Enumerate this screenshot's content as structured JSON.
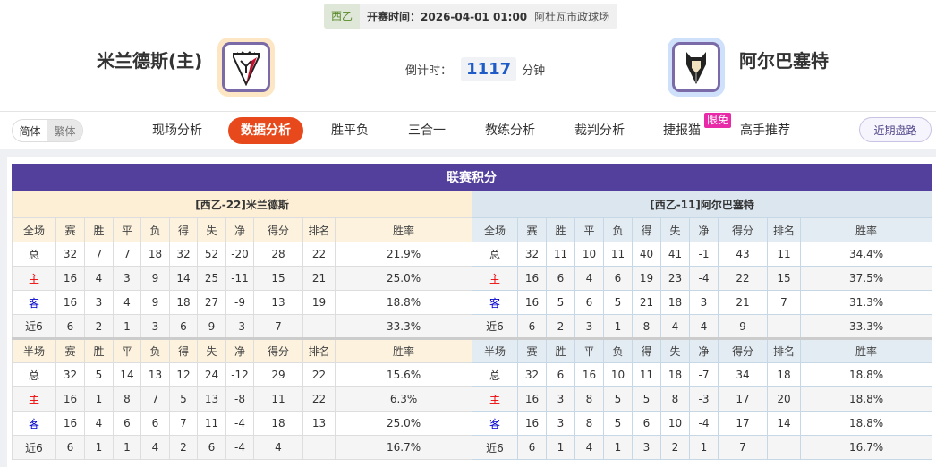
{
  "match": {
    "league": "西乙",
    "kickoff": "开赛时间：2026-04-01 01:00",
    "venue": "阿杜瓦市政球场",
    "home_team": "米兰德斯(主)",
    "away_team": "阿尔巴塞特",
    "countdown_label": "倒计时：",
    "countdown_value": "1117",
    "countdown_unit": "分钟"
  },
  "nav": {
    "lang_simplified": "简体",
    "lang_traditional": "繁体",
    "items": [
      "现场分析",
      "数据分析",
      "胜平负",
      "三合一",
      "教练分析",
      "裁判分析",
      "捷报猫",
      "高手推荐"
    ],
    "active": "数据分析",
    "badge": "限免",
    "recent": "近期盘路"
  },
  "colors": {
    "accent": "#e8491c",
    "header": "#533f9c"
  },
  "standings": {
    "title": "联赛积分",
    "columns": [
      "赛",
      "胜",
      "平",
      "负",
      "得",
      "失",
      "净",
      "得分",
      "排名",
      "胜率"
    ],
    "tables": [
      {
        "title": "[西乙-22]米兰德斯",
        "sections": [
          {
            "label": "全场",
            "rows": [
              [
                "总",
                "32",
                "7",
                "7",
                "18",
                "32",
                "52",
                "-20",
                "28",
                "22",
                "21.9%"
              ],
              [
                "主",
                "16",
                "4",
                "3",
                "9",
                "14",
                "25",
                "-11",
                "15",
                "21",
                "25.0%"
              ],
              [
                "客",
                "16",
                "3",
                "4",
                "9",
                "18",
                "27",
                "-9",
                "13",
                "19",
                "18.8%"
              ],
              [
                "近6",
                "6",
                "2",
                "1",
                "3",
                "6",
                "9",
                "-3",
                "7",
                "",
                "33.3%"
              ]
            ]
          },
          {
            "label": "半场",
            "rows": [
              [
                "总",
                "32",
                "5",
                "14",
                "13",
                "12",
                "24",
                "-12",
                "29",
                "22",
                "15.6%"
              ],
              [
                "主",
                "16",
                "1",
                "8",
                "7",
                "5",
                "13",
                "-8",
                "11",
                "22",
                "6.3%"
              ],
              [
                "客",
                "16",
                "4",
                "6",
                "6",
                "7",
                "11",
                "-4",
                "18",
                "13",
                "25.0%"
              ],
              [
                "近6",
                "6",
                "1",
                "1",
                "4",
                "2",
                "6",
                "-4",
                "4",
                "",
                "16.7%"
              ]
            ]
          }
        ]
      },
      {
        "title": "[西乙-11]阿尔巴塞特",
        "sections": [
          {
            "label": "全场",
            "rows": [
              [
                "总",
                "32",
                "11",
                "10",
                "11",
                "40",
                "41",
                "-1",
                "43",
                "11",
                "34.4%"
              ],
              [
                "主",
                "16",
                "6",
                "4",
                "6",
                "19",
                "23",
                "-4",
                "22",
                "15",
                "37.5%"
              ],
              [
                "客",
                "16",
                "5",
                "6",
                "5",
                "21",
                "18",
                "3",
                "21",
                "7",
                "31.3%"
              ],
              [
                "近6",
                "6",
                "2",
                "3",
                "1",
                "8",
                "4",
                "4",
                "9",
                "",
                "33.3%"
              ]
            ]
          },
          {
            "label": "半场",
            "rows": [
              [
                "总",
                "32",
                "6",
                "16",
                "10",
                "11",
                "18",
                "-7",
                "34",
                "18",
                "18.8%"
              ],
              [
                "主",
                "16",
                "3",
                "8",
                "5",
                "5",
                "8",
                "-3",
                "17",
                "20",
                "18.8%"
              ],
              [
                "客",
                "16",
                "3",
                "8",
                "5",
                "6",
                "10",
                "-4",
                "17",
                "14",
                "18.8%"
              ],
              [
                "近6",
                "6",
                "1",
                "4",
                "1",
                "3",
                "2",
                "1",
                "7",
                "",
                "16.7%"
              ]
            ]
          }
        ]
      }
    ]
  }
}
